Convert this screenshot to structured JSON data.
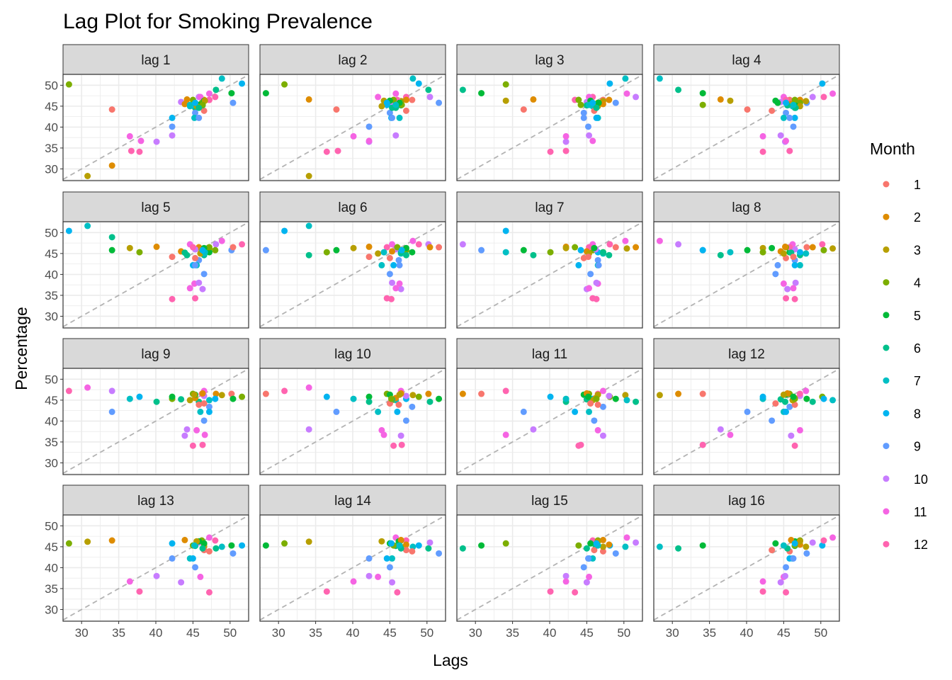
{
  "chart_data": {
    "type": "scatter",
    "title": "Lag Plot for Smoking Prevalence",
    "xlabel": "Lags",
    "ylabel": "Percentage",
    "panels": [
      "lag 1",
      "lag 2",
      "lag 3",
      "lag 4",
      "lag 5",
      "lag 6",
      "lag 7",
      "lag 8",
      "lag 9",
      "lag 10",
      "lag 11",
      "lag 12",
      "lag 13",
      "lag 14",
      "lag 15",
      "lag 16"
    ],
    "xlim": [
      27.5,
      52.5
    ],
    "ylim": [
      27.2,
      52.6
    ],
    "x_ticks": [
      30,
      35,
      40,
      45,
      50
    ],
    "y_ticks": [
      30,
      35,
      40,
      45,
      50
    ],
    "grid": true,
    "reference_line": "y = x (dashed gray)",
    "legend": {
      "title": "Month",
      "position": "right",
      "labels": [
        "1",
        "2",
        "3",
        "4",
        "5",
        "6",
        "7",
        "8",
        "9",
        "10",
        "11",
        "12"
      ],
      "colors": [
        "#F8766D",
        "#DE8C00",
        "#B79F00",
        "#7CAE00",
        "#00BA38",
        "#00C08B",
        "#00BFC4",
        "#00B4F0",
        "#619CFF",
        "#C77CFF",
        "#F564E3",
        "#FF64B0"
      ]
    },
    "series_values": {
      "months": [
        1,
        2,
        3,
        4,
        5,
        6,
        7,
        8,
        9,
        10,
        11,
        12,
        1,
        2,
        3,
        4,
        5,
        6,
        7,
        8,
        9,
        10,
        11,
        12,
        1,
        2,
        3,
        4,
        5,
        6,
        7,
        8,
        9,
        10,
        11,
        12,
        1,
        2,
        3,
        4,
        5,
        6,
        7,
        8,
        9,
        10,
        11,
        12
      ],
      "values": [
        34.1,
        30.8,
        28.3,
        50.2,
        48.1,
        48.9,
        51.6,
        50.4,
        45.8,
        47.2,
        48.0,
        47.2,
        46.5,
        46.5,
        46.2,
        45.8,
        45.3,
        44.6,
        45.0,
        45.3,
        43.4,
        46.0,
        47.2,
        46.5,
        43.9,
        45.5,
        45.0,
        46.5,
        46.3,
        45.2,
        42.2,
        42.2,
        40.1,
        36.5,
        37.8,
        34.1,
        44.2,
        46.6,
        46.3,
        45.3,
        45.8,
        44.6,
        45.3,
        45.8,
        42.2,
        38.0,
        36.7,
        34.3
      ]
    },
    "note_lag_k": "Each panel plots value[t] (y) against value[t-k] (x) for lag k, points coloured by the month of value[t]"
  }
}
